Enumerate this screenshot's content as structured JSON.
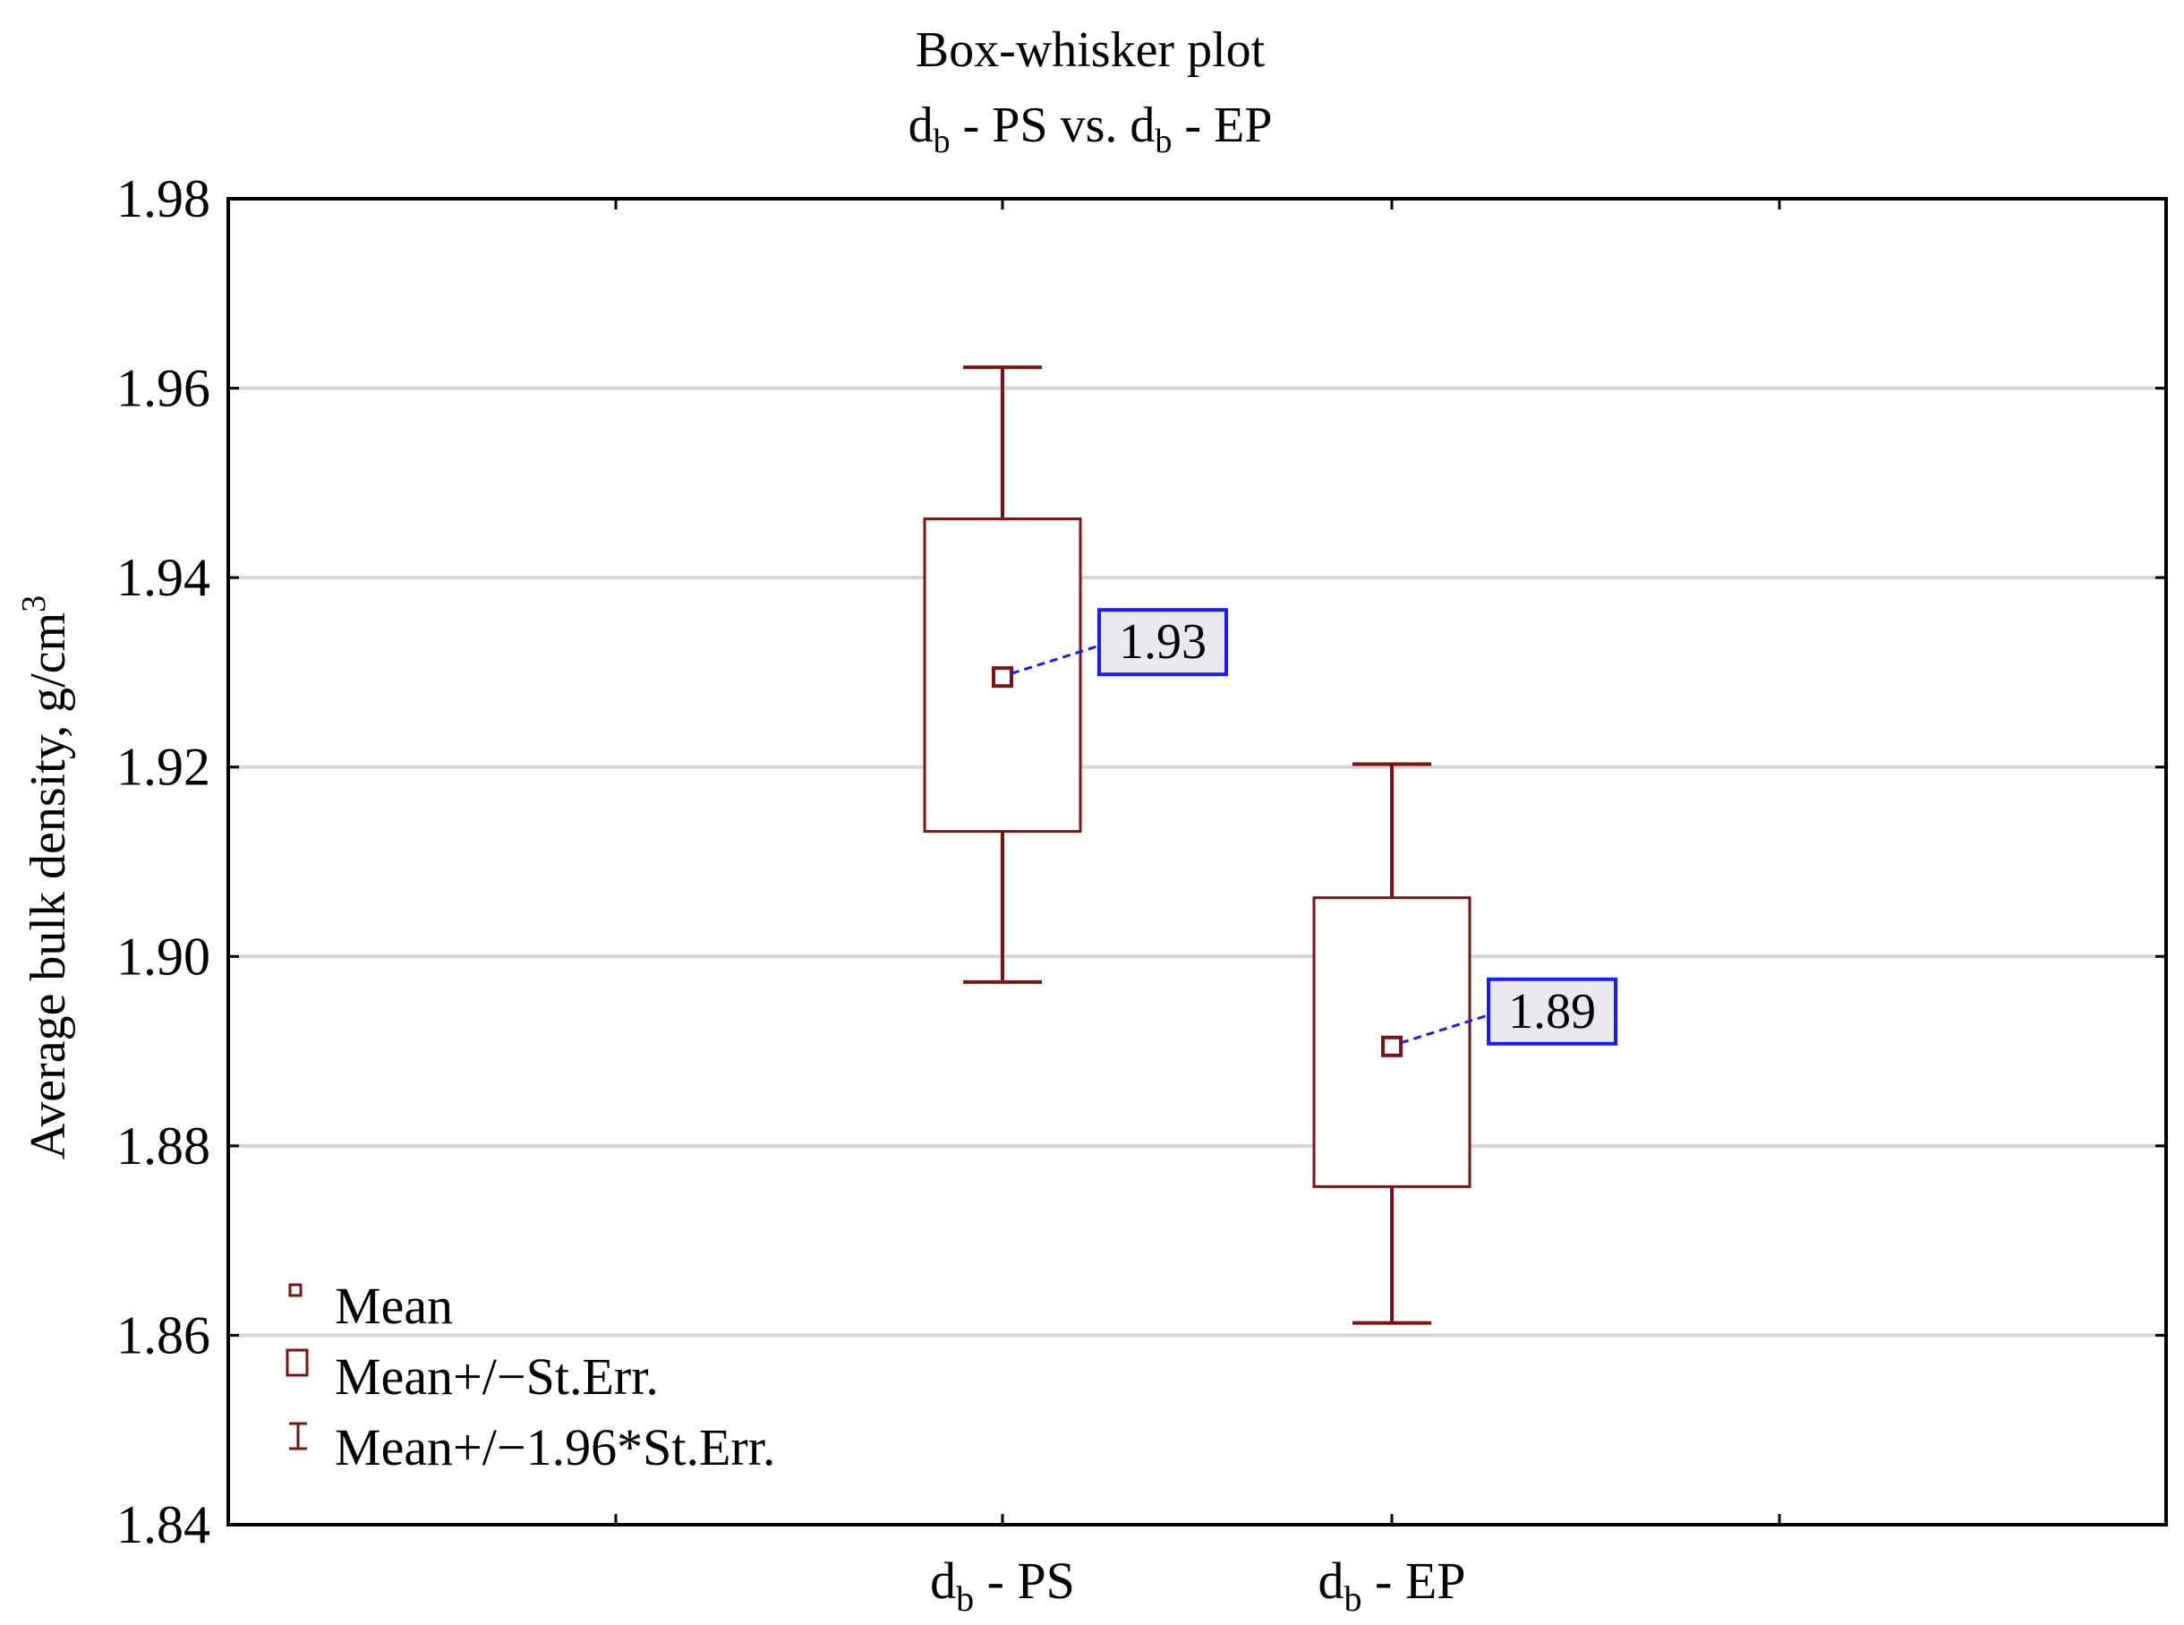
{
  "chart_data": {
    "type": "box",
    "title": "Box-whisker plot",
    "subtitle": {
      "left_main": "d",
      "left_sub": "b",
      "left_rest": " - PS vs. ",
      "right_main": "d",
      "right_sub": "b",
      "right_rest": " - EP"
    },
    "ylabel": "Average bulk density, g/cm",
    "ylabel_sup": "3",
    "ylim": [
      1.84,
      1.98
    ],
    "yticks": [
      "1.84",
      "1.86",
      "1.88",
      "1.90",
      "1.92",
      "1.94",
      "1.96",
      "1.98"
    ],
    "ytick_values": [
      1.84,
      1.86,
      1.88,
      1.9,
      1.92,
      1.94,
      1.96,
      1.98
    ],
    "grid": true,
    "categories": [
      {
        "main": "d",
        "sub": "b",
        "rest": " - PS"
      },
      {
        "main": "d",
        "sub": "b",
        "rest": " - EP"
      }
    ],
    "series": [
      {
        "name": "d_b - PS",
        "mean": 1.9295,
        "se_low": 1.9132,
        "se_high": 1.9462,
        "ci_low": 1.8973,
        "ci_high": 1.9622,
        "label": "1.93"
      },
      {
        "name": "d_b - EP",
        "mean": 1.8905,
        "se_low": 1.8757,
        "se_high": 1.9062,
        "ci_low": 1.8613,
        "ci_high": 1.9203,
        "label": "1.89"
      }
    ],
    "legend": {
      "position": "bottom-left",
      "items": [
        "Mean",
        "Mean+/−St.Err.",
        "Mean+/−1.96*St.Err."
      ]
    },
    "colors": {
      "box": "#7b1214",
      "label_border": "#1a1aff",
      "label_fill": "#e8e8ee",
      "connector": "#1a1aff",
      "grid": "#d6d6d6"
    }
  }
}
